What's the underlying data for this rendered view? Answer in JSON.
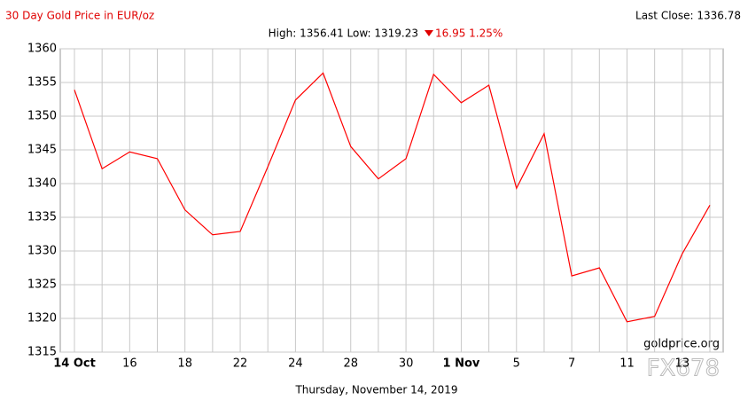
{
  "chart_data": {
    "type": "line",
    "title": "30 Day Gold Price in EUR/oz",
    "last_close": "Last Close: 1336.78",
    "high_low": "High: 1356.41 Low: 1319.23",
    "change": "16.95 1.25%",
    "watermark": "goldprice.org",
    "overlay": "FX678",
    "footer": "Thursday, November 14, 2019",
    "categories": [
      "14 Oct",
      null,
      "16",
      null,
      "18",
      null,
      "22",
      null,
      "24",
      null,
      "28",
      null,
      "30",
      null,
      "1 Nov",
      null,
      "5",
      null,
      "7",
      null,
      "11",
      null,
      "13",
      null
    ],
    "series": [
      {
        "color": "#ff0000",
        "values": [
          1353.9,
          1342.2,
          1344.7,
          1343.7,
          1336.1,
          1332.4,
          1332.9,
          1342.5,
          1352.4,
          1356.4,
          1345.5,
          1340.7,
          1343.7,
          1356.2,
          1352.0,
          1354.6,
          1339.3,
          1347.4,
          1326.3,
          1327.5,
          1319.5,
          1320.3,
          1329.6,
          1336.8
        ]
      }
    ],
    "ylim": [
      1315,
      1360
    ],
    "yticks": [
      1315,
      1320,
      1325,
      1330,
      1335,
      1340,
      1345,
      1350,
      1355,
      1360
    ],
    "grid": true
  }
}
